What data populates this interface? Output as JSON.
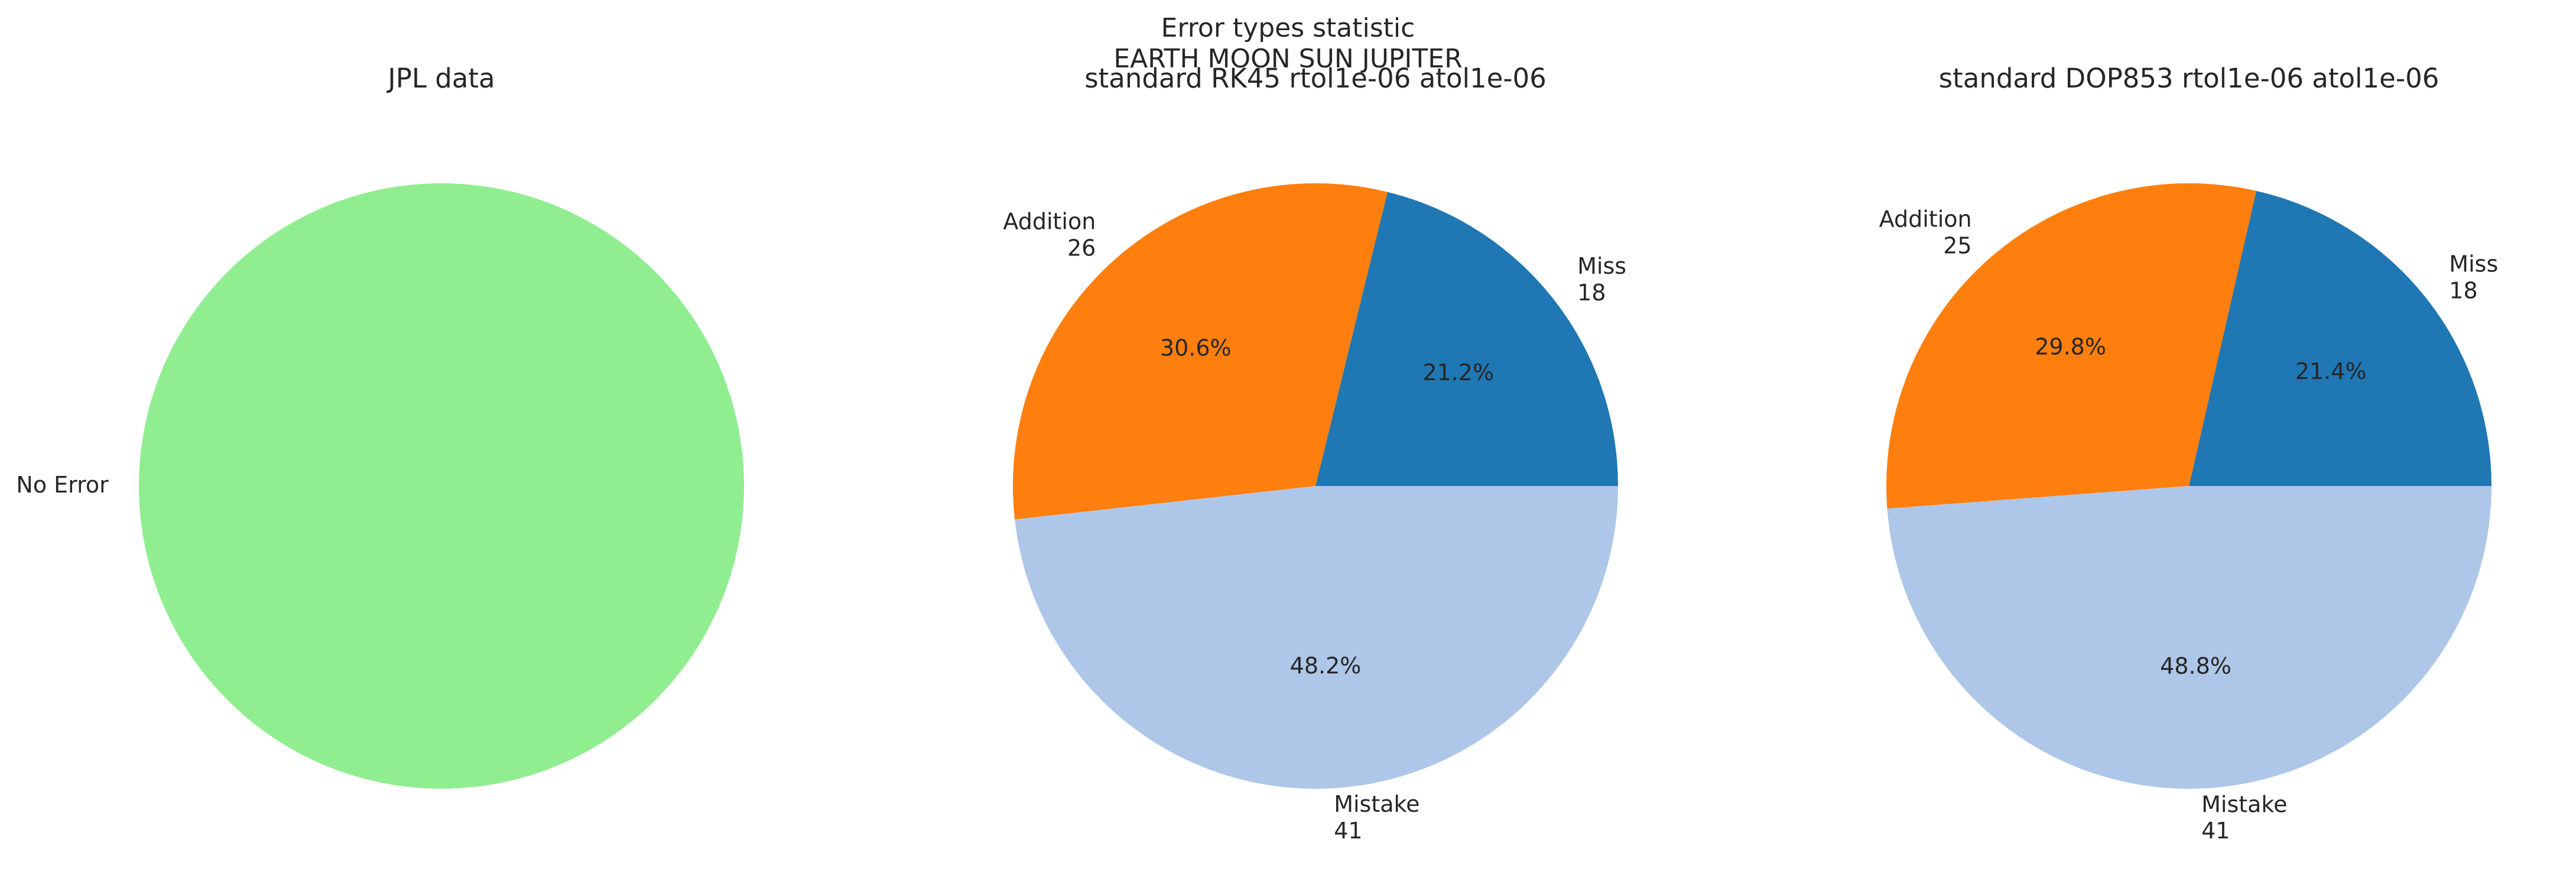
{
  "figure": {
    "suptitle": [
      "Error types statistic",
      "EARTH MOON SUN JUPITER"
    ]
  },
  "chart_data": [
    {
      "type": "pie",
      "title": "JPL data",
      "slices": [
        {
          "label": "No Error",
          "value": 1,
          "color": "#90ee90",
          "show_count": false,
          "show_pct": false
        }
      ]
    },
    {
      "type": "pie",
      "title": "standard RK45 rtol1e-06 atol1e-06",
      "slices": [
        {
          "label": "Miss",
          "value": 18,
          "color": "#1f77b4",
          "show_count": true,
          "show_pct": true
        },
        {
          "label": "Addition",
          "value": 26,
          "color": "#ff7f0e",
          "show_count": true,
          "show_pct": true
        },
        {
          "label": "Mistake",
          "value": 41,
          "color": "#aec7e8",
          "show_count": true,
          "show_pct": true
        }
      ]
    },
    {
      "type": "pie",
      "title": "standard DOP853 rtol1e-06 atol1e-06",
      "slices": [
        {
          "label": "Miss",
          "value": 18,
          "color": "#1f77b4",
          "show_count": true,
          "show_pct": true
        },
        {
          "label": "Addition",
          "value": 25,
          "color": "#ff7f0e",
          "show_count": true,
          "show_pct": true
        },
        {
          "label": "Mistake",
          "value": 41,
          "color": "#aec7e8",
          "show_count": true,
          "show_pct": true
        }
      ]
    }
  ]
}
